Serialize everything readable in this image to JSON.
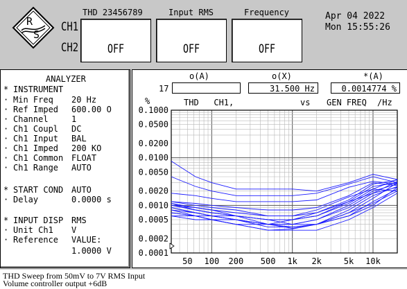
{
  "header": {
    "ch1_label": "CH1",
    "ch2_label": "CH2",
    "meters": [
      {
        "label": "THD 23456789",
        "value": "OFF"
      },
      {
        "label": "Input RMS",
        "value": "OFF"
      },
      {
        "label": "Frequency",
        "value": "OFF"
      }
    ],
    "date": "Apr 04 2022",
    "time": "Mon 15:55:26"
  },
  "analyzer": {
    "title": "ANALYZER",
    "rows": [
      {
        "bullet": "*",
        "label": "INSTRUMENT",
        "value": ""
      },
      {
        "bullet": "·",
        "label": "Min Freq",
        "value": "20 Hz"
      },
      {
        "bullet": "·",
        "label": "Ref Imped",
        "value": "600.00 O"
      },
      {
        "bullet": "·",
        "label": "Channel",
        "value": "1"
      },
      {
        "bullet": "·",
        "label": "Ch1 Coupl",
        "value": "DC"
      },
      {
        "bullet": "·",
        "label": "Ch1 Input",
        "value": "BAL"
      },
      {
        "bullet": "·",
        "label": "Ch1 Imped",
        "value": "200 KO"
      },
      {
        "bullet": "·",
        "label": "Ch1 Common",
        "value": "FLOAT"
      },
      {
        "bullet": "·",
        "label": "Ch1 Range",
        "value": "AUTO"
      },
      {
        "bullet": "*",
        "label": "START COND",
        "value": "AUTO"
      },
      {
        "bullet": "·",
        "label": "Delay",
        "value": "0.0000 s"
      },
      {
        "bullet": "*",
        "label": "INPUT DISP",
        "value": "RMS"
      },
      {
        "bullet": "·",
        "label": "Unit Ch1",
        "value": "V"
      },
      {
        "bullet": "·",
        "label": "Reference",
        "value": "VALUE:"
      },
      {
        "bullet": "",
        "label": "",
        "value": "1.0000 V"
      }
    ]
  },
  "graph": {
    "col_a": "o(A)",
    "col_x": "o(X)",
    "col_star": "*(A)",
    "row_num": "17",
    "x_value": "31.500  Hz",
    "star_value": "0.0014774 %",
    "y_unit": "%",
    "title_left": "THD   CH1,",
    "title_vs": "vs",
    "title_right": "GEN FREQ",
    "x_unit": "/Hz",
    "y_ticks": [
      "0.1000",
      "0.0500",
      "0.0200",
      "0.0100",
      "0.0050",
      "0.0020",
      "0.0010",
      "0.0005",
      "0.0002",
      "0.0001"
    ],
    "x_ticks": [
      "50",
      "100",
      "200",
      "500",
      "1k",
      "2k",
      "5k",
      "10k"
    ]
  },
  "chart_data": {
    "type": "line",
    "title": "THD   CH1,  vs  GEN FREQ",
    "xlabel": "/Hz",
    "ylabel": "%",
    "x_scale": "log",
    "y_scale": "log",
    "xlim": [
      31.5,
      20000
    ],
    "ylim": [
      0.0001,
      0.1
    ],
    "grid": true,
    "color": "#1a1aff",
    "x": [
      31.5,
      63,
      100,
      200,
      500,
      1000,
      2000,
      5000,
      10000,
      20000
    ],
    "series": [
      {
        "values": [
          0.0085,
          0.004,
          0.003,
          0.0022,
          0.0022,
          0.0022,
          0.002,
          0.003,
          0.0045,
          0.0035
        ]
      },
      {
        "values": [
          0.004,
          0.0025,
          0.002,
          0.0016,
          0.0016,
          0.0016,
          0.0018,
          0.0028,
          0.004,
          0.003
        ]
      },
      {
        "values": [
          0.0018,
          0.0016,
          0.0014,
          0.0012,
          0.0012,
          0.0012,
          0.0013,
          0.0024,
          0.0032,
          0.0028
        ]
      },
      {
        "values": [
          0.0012,
          0.0011,
          0.001,
          0.0009,
          0.0008,
          0.0008,
          0.0009,
          0.0016,
          0.003,
          0.0026
        ]
      },
      {
        "values": [
          0.0011,
          0.0008,
          0.0007,
          0.0006,
          0.0005,
          0.0005,
          0.0006,
          0.0012,
          0.0025,
          0.003
        ]
      },
      {
        "values": [
          0.001,
          0.0008,
          0.0007,
          0.0006,
          0.0005,
          0.0004,
          0.0005,
          0.001,
          0.002,
          0.0028
        ]
      },
      {
        "values": [
          0.0009,
          0.0007,
          0.0006,
          0.0005,
          0.0004,
          0.0004,
          0.0005,
          0.0009,
          0.0018,
          0.0032
        ]
      },
      {
        "values": [
          0.0008,
          0.0007,
          0.0006,
          0.0005,
          0.0004,
          0.00035,
          0.0004,
          0.0008,
          0.0016,
          0.0025
        ]
      },
      {
        "values": [
          0.0008,
          0.0006,
          0.0006,
          0.0005,
          0.0004,
          0.0004,
          0.0004,
          0.0007,
          0.0014,
          0.003
        ]
      },
      {
        "values": [
          0.0007,
          0.0006,
          0.0005,
          0.0005,
          0.00035,
          0.00035,
          0.0004,
          0.0006,
          0.0012,
          0.0022
        ]
      },
      {
        "values": [
          0.0007,
          0.0006,
          0.0005,
          0.0004,
          0.0004,
          0.00033,
          0.0004,
          0.0006,
          0.001,
          0.0024
        ]
      },
      {
        "values": [
          0.0006,
          0.0006,
          0.0005,
          0.0004,
          0.0003,
          0.00032,
          0.0004,
          0.0007,
          0.0011,
          0.002
        ]
      },
      {
        "values": [
          0.0006,
          0.0005,
          0.0005,
          0.0004,
          0.0003,
          0.0003,
          0.0003,
          0.0005,
          0.0009,
          0.0018
        ]
      },
      {
        "values": [
          0.0009,
          0.0007,
          0.0006,
          0.0006,
          0.0004,
          0.0005,
          0.0006,
          0.0011,
          0.0022,
          0.0035
        ]
      },
      {
        "values": [
          0.001,
          0.0009,
          0.0008,
          0.0006,
          0.0005,
          0.0005,
          0.0007,
          0.0013,
          0.0028,
          0.0034
        ]
      },
      {
        "values": [
          0.0011,
          0.0009,
          0.0008,
          0.0007,
          0.0006,
          0.0006,
          0.0008,
          0.0015,
          0.0022,
          0.002
        ]
      },
      {
        "values": [
          0.0012,
          0.001,
          0.0009,
          0.0008,
          0.0006,
          0.0006,
          0.0007,
          0.0012,
          0.0018,
          0.0024
        ]
      }
    ]
  },
  "caption": {
    "line1": "THD Sweep from 50mV to 7V RMS Input",
    "line2": "Volume controller output +6dB"
  }
}
